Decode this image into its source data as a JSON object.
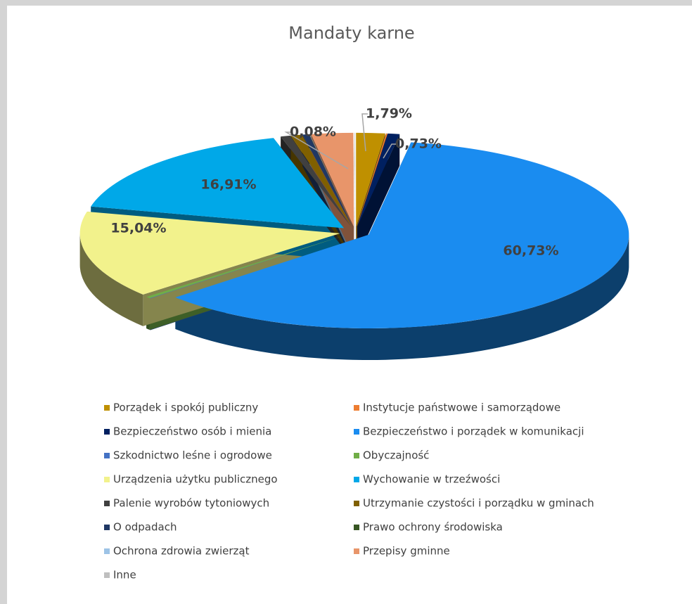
{
  "chart_data": {
    "type": "pie",
    "title": "Mandaty karne",
    "categories": [
      "Porządek i spokój publiczny",
      "Instytucje państwowe i samorządowe",
      "Bezpieczeństwo osób i mienia",
      "Bezpieczeństwo i porządek w komunikacji",
      "Szkodnictwo leśne i ogrodowe",
      "Obyczajność",
      "Urządzenia użytku publicznego",
      "Wychowanie w trzeźwości",
      "Palenie wyrobów tytoniowych",
      "Utrzymanie czystości i porządku w gminach",
      "O odpadach",
      "Prawo ochrony środowiska",
      "Ochrona zdrowia zwierząt",
      "Przepisy gminne",
      "Inne"
    ],
    "values": [
      1.79,
      0.08,
      0.73,
      60.73,
      0.05,
      0.3,
      15.04,
      16.91,
      0.6,
      0.7,
      0.4,
      0.02,
      0.02,
      2.6,
      0.03
    ],
    "value_labels": [
      "1,79%",
      "0,08%",
      "0,73%",
      "60,73%",
      null,
      null,
      "15,04%",
      "16,91%",
      null,
      null,
      null,
      null,
      null,
      null,
      null
    ],
    "colors": [
      "#bf9000",
      "#ed7d31",
      "#002060",
      "#1a8cf0",
      "#4472c4",
      "#70ad47",
      "#f2f28c",
      "#00a8e8",
      "#404040",
      "#806000",
      "#203864",
      "#375623",
      "#9dc3e6",
      "#e8956a",
      "#bfbfbf"
    ],
    "legend": "bottom"
  }
}
